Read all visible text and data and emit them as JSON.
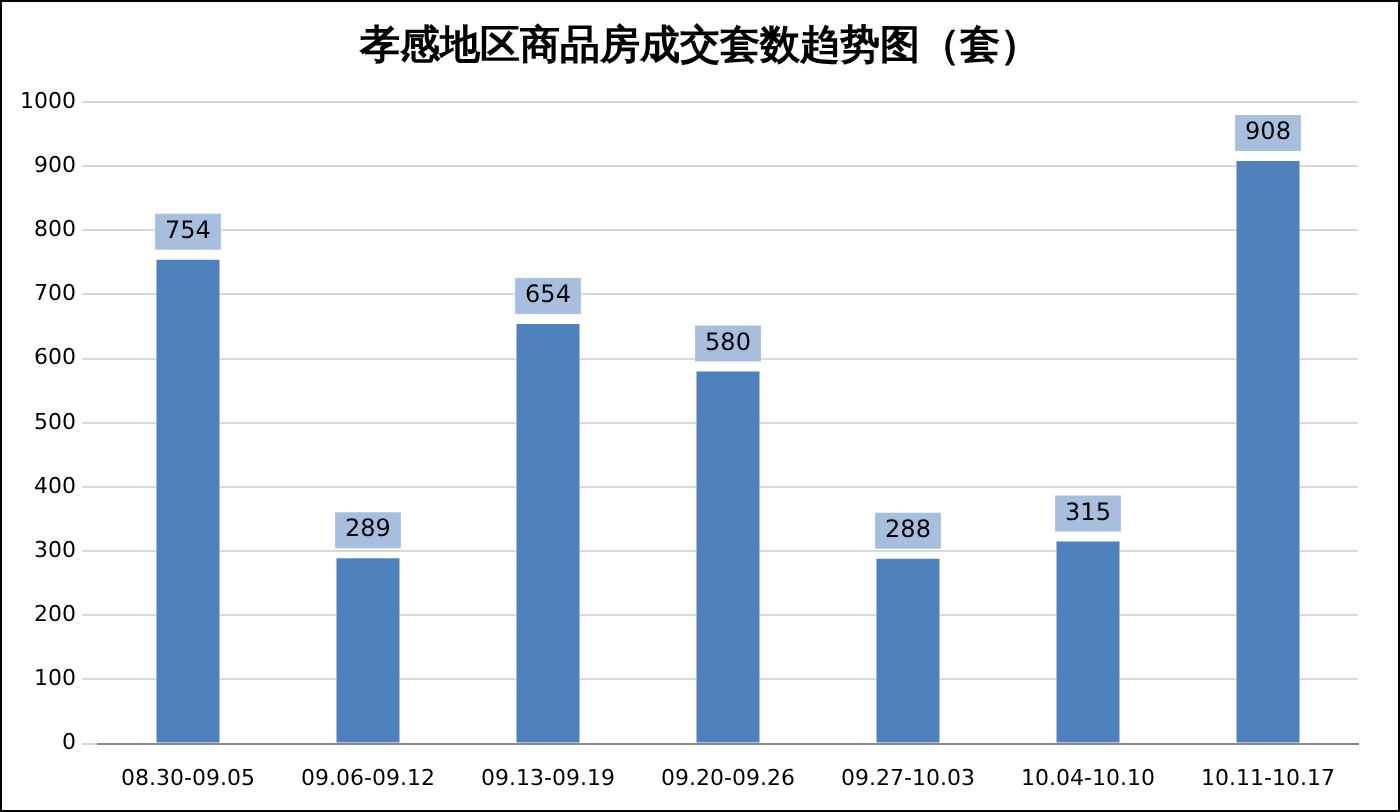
{
  "chart_data": {
    "type": "bar",
    "title": "孝感地区商品房成交套数趋势图（套）",
    "categories": [
      "08.30-09.05",
      "09.06-09.12",
      "09.13-09.19",
      "09.20-09.26",
      "09.27-10.03",
      "10.04-10.10",
      "10.11-10.17"
    ],
    "values": [
      754,
      289,
      654,
      580,
      288,
      315,
      908
    ],
    "color": "#4f81bd",
    "ylim": [
      0,
      1000
    ],
    "yticks": [
      0,
      100,
      200,
      300,
      400,
      500,
      600,
      700,
      800,
      900,
      1000
    ],
    "grid": "y",
    "data_labels": true
  }
}
